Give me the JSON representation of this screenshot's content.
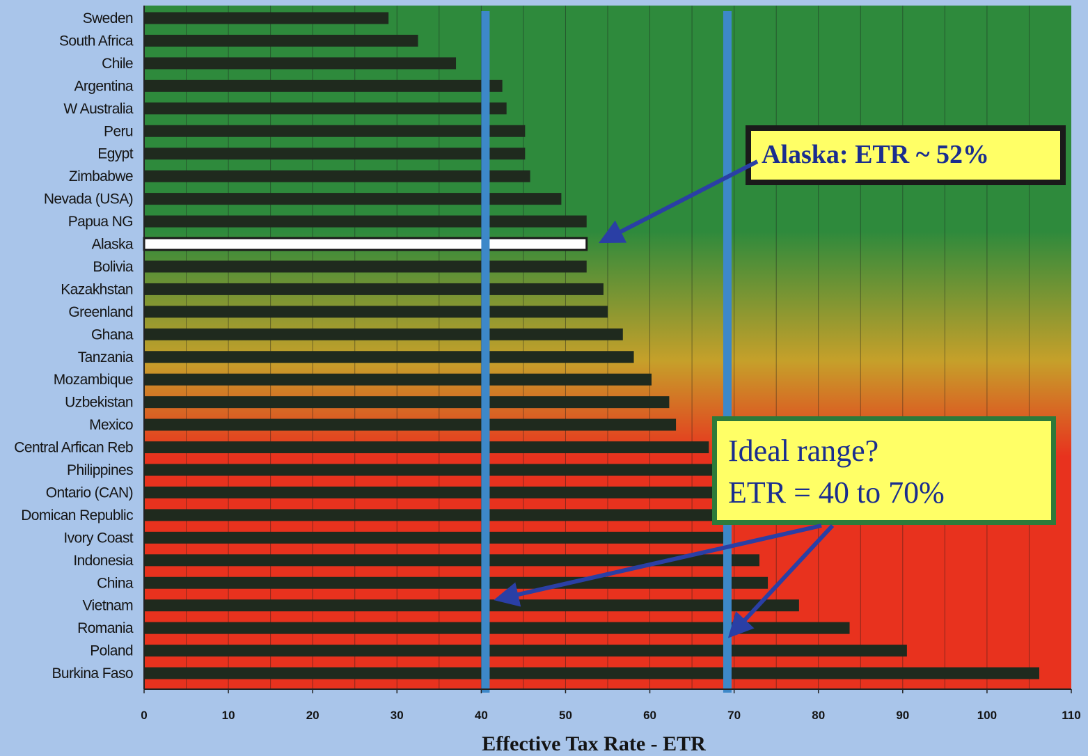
{
  "colors": {
    "page_background": "#a9c5ea",
    "plot_gradient_top": "#2e8a3c",
    "plot_gradient_mid": "#c6a02a",
    "plot_gradient_bottom": "#e8321e",
    "bar": "#1f2a1e",
    "highlight_bar": "#ffffff",
    "range_line": "#3d88c9",
    "callout_fill": "#ffff66",
    "arrow": "#2a3fa5"
  },
  "chart_data": {
    "type": "bar",
    "orientation": "horizontal",
    "title": "",
    "xlabel": "Effective Tax Rate - ETR",
    "ylabel": "",
    "xlim": [
      0,
      110
    ],
    "xticks": [
      0,
      10,
      20,
      30,
      40,
      50,
      60,
      70,
      80,
      90,
      100,
      110
    ],
    "grid": "vertical every 5",
    "legend": "none",
    "categories": [
      "Sweden",
      "South Africa",
      "Chile",
      "Argentina",
      "W Australia",
      "Peru",
      "Egypt",
      "Zimbabwe",
      "Nevada (USA)",
      "Papua NG",
      "Alaska",
      "Bolivia",
      "Kazakhstan",
      "Greenland",
      "Ghana",
      "Tanzania",
      "Mozambique",
      "Uzbekistan",
      "Mexico",
      "Central Arfican Reb",
      "Philippines",
      "Ontario (CAN)",
      "Domican Republic",
      "Ivory Coast",
      "Indonesia",
      "China",
      "Vietnam",
      "Romania",
      "Poland",
      "Burkina Faso"
    ],
    "values": [
      29,
      32.5,
      37,
      42.5,
      43,
      45.2,
      45.2,
      45.8,
      49.5,
      52.5,
      52.5,
      52.5,
      54.5,
      55,
      56.8,
      58.1,
      60.2,
      62.3,
      63.1,
      67,
      68,
      68.5,
      69,
      69.5,
      73,
      74,
      77.7,
      83.7,
      90.5,
      106.2
    ],
    "highlight": "Alaska",
    "reference_lines": [
      40.5,
      69.2
    ],
    "annotations": [
      {
        "text": "Alaska: ETR ~ 52%",
        "points_to": "Alaska"
      },
      {
        "lines": [
          "Ideal range?",
          "ETR = 40 to 70%"
        ],
        "points_to": "reference lines"
      }
    ]
  }
}
